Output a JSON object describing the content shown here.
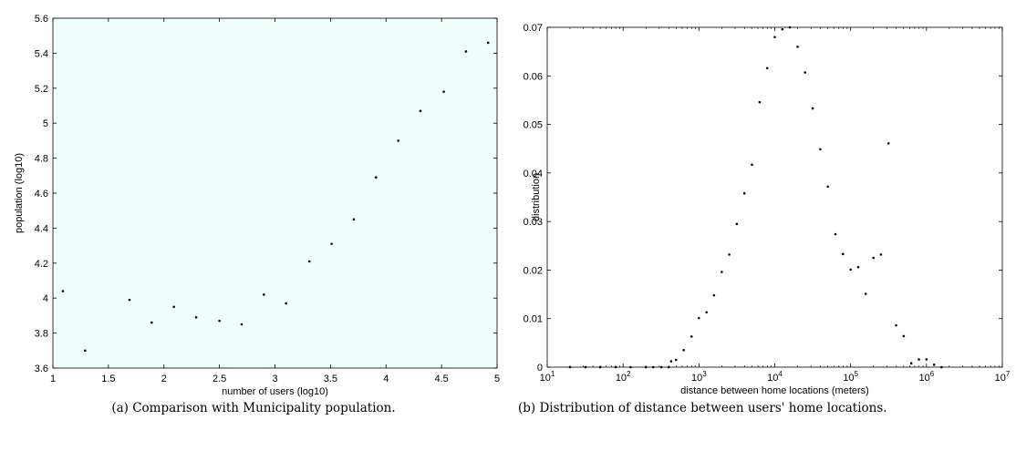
{
  "chart_data": [
    {
      "type": "scatter",
      "xlabel": "number of users (log10)",
      "ylabel": "population (log10)",
      "xlim": [
        1,
        5
      ],
      "ylim": [
        3.6,
        5.6
      ],
      "xticks": [
        1,
        1.5,
        2,
        2.5,
        3,
        3.5,
        4,
        4.5,
        5
      ],
      "xtick_labels": [
        "1",
        "1.5",
        "2",
        "2.5",
        "3",
        "3.5",
        "4",
        "4.5",
        "5"
      ],
      "yticks": [
        3.6,
        3.8,
        4,
        4.2,
        4.4,
        4.6,
        4.8,
        5,
        5.2,
        5.4,
        5.6
      ],
      "ytick_labels": [
        "3.6",
        "3.8",
        "4",
        "4.2",
        "4.4",
        "4.6",
        "4.8",
        "5",
        "5.2",
        "5.4",
        "5.6"
      ],
      "plot_background": "#f0fefe",
      "point_color": "#000000",
      "points": [
        [
          1.09,
          4.04
        ],
        [
          1.29,
          3.7
        ],
        [
          1.69,
          3.99
        ],
        [
          1.89,
          3.86
        ],
        [
          2.09,
          3.95
        ],
        [
          2.29,
          3.89
        ],
        [
          2.5,
          3.87
        ],
        [
          2.7,
          3.85
        ],
        [
          2.9,
          4.02
        ],
        [
          3.1,
          3.97
        ],
        [
          3.31,
          4.21
        ],
        [
          3.51,
          4.31
        ],
        [
          3.71,
          4.45
        ],
        [
          3.91,
          4.69
        ],
        [
          4.11,
          4.9
        ],
        [
          4.31,
          5.07
        ],
        [
          4.52,
          5.18
        ],
        [
          4.72,
          5.41
        ],
        [
          4.92,
          5.46
        ]
      ]
    },
    {
      "type": "scatter",
      "xlabel": "distance between home locations (meters)",
      "ylabel": "distribution",
      "xscale": "log",
      "xlim": [
        10,
        10000000
      ],
      "ylim": [
        0,
        0.07
      ],
      "xticks": [
        10,
        100,
        1000,
        10000,
        100000,
        1000000,
        10000000
      ],
      "xtick_labels": [
        "10^1",
        "10^2",
        "10^3",
        "10^4",
        "10^5",
        "10^6",
        "10^7"
      ],
      "yticks": [
        0,
        0.01,
        0.02,
        0.03,
        0.04,
        0.05,
        0.06,
        0.07
      ],
      "ytick_labels": [
        "0",
        "0.01",
        "0.02",
        "0.03",
        "0.04",
        "0.05",
        "0.06",
        "0.07"
      ],
      "plot_background": "#ffffff",
      "point_color": "#000000",
      "points": [
        [
          20,
          0.0
        ],
        [
          32,
          0.0
        ],
        [
          50,
          0.0
        ],
        [
          80,
          0.0
        ],
        [
          126,
          0.0
        ],
        [
          200,
          0.0
        ],
        [
          250,
          0.0
        ],
        [
          320,
          0.0
        ],
        [
          400,
          0.0
        ],
        [
          430,
          0.0012
        ],
        [
          500,
          0.0015
        ],
        [
          630,
          0.0035
        ],
        [
          800,
          0.0063
        ],
        [
          1000,
          0.0101
        ],
        [
          1260,
          0.0113
        ],
        [
          1580,
          0.0148
        ],
        [
          2000,
          0.0196
        ],
        [
          2510,
          0.0232
        ],
        [
          3160,
          0.0295
        ],
        [
          3980,
          0.0358
        ],
        [
          5010,
          0.0417
        ],
        [
          6310,
          0.0546
        ],
        [
          7940,
          0.0616
        ],
        [
          10000,
          0.068
        ],
        [
          12600,
          0.0696
        ],
        [
          15800,
          0.07
        ],
        [
          20000,
          0.066
        ],
        [
          25100,
          0.0607
        ],
        [
          31600,
          0.0533
        ],
        [
          39800,
          0.0449
        ],
        [
          50100,
          0.0372
        ],
        [
          63100,
          0.0274
        ],
        [
          79400,
          0.0233
        ],
        [
          100000,
          0.0201
        ],
        [
          126000,
          0.0206
        ],
        [
          158000,
          0.0151
        ],
        [
          200000,
          0.0225
        ],
        [
          251000,
          0.0232
        ],
        [
          316000,
          0.0461
        ],
        [
          398000,
          0.0086
        ],
        [
          501000,
          0.0064
        ],
        [
          631000,
          0.0008
        ],
        [
          794000,
          0.0016
        ],
        [
          1000000,
          0.0016
        ],
        [
          1260000,
          0.0005
        ],
        [
          1580000,
          0.0
        ]
      ]
    }
  ],
  "captions": {
    "a": "(a) Comparison with Municipality population.",
    "b": "(b) Distribution of distance between users' home locations."
  }
}
